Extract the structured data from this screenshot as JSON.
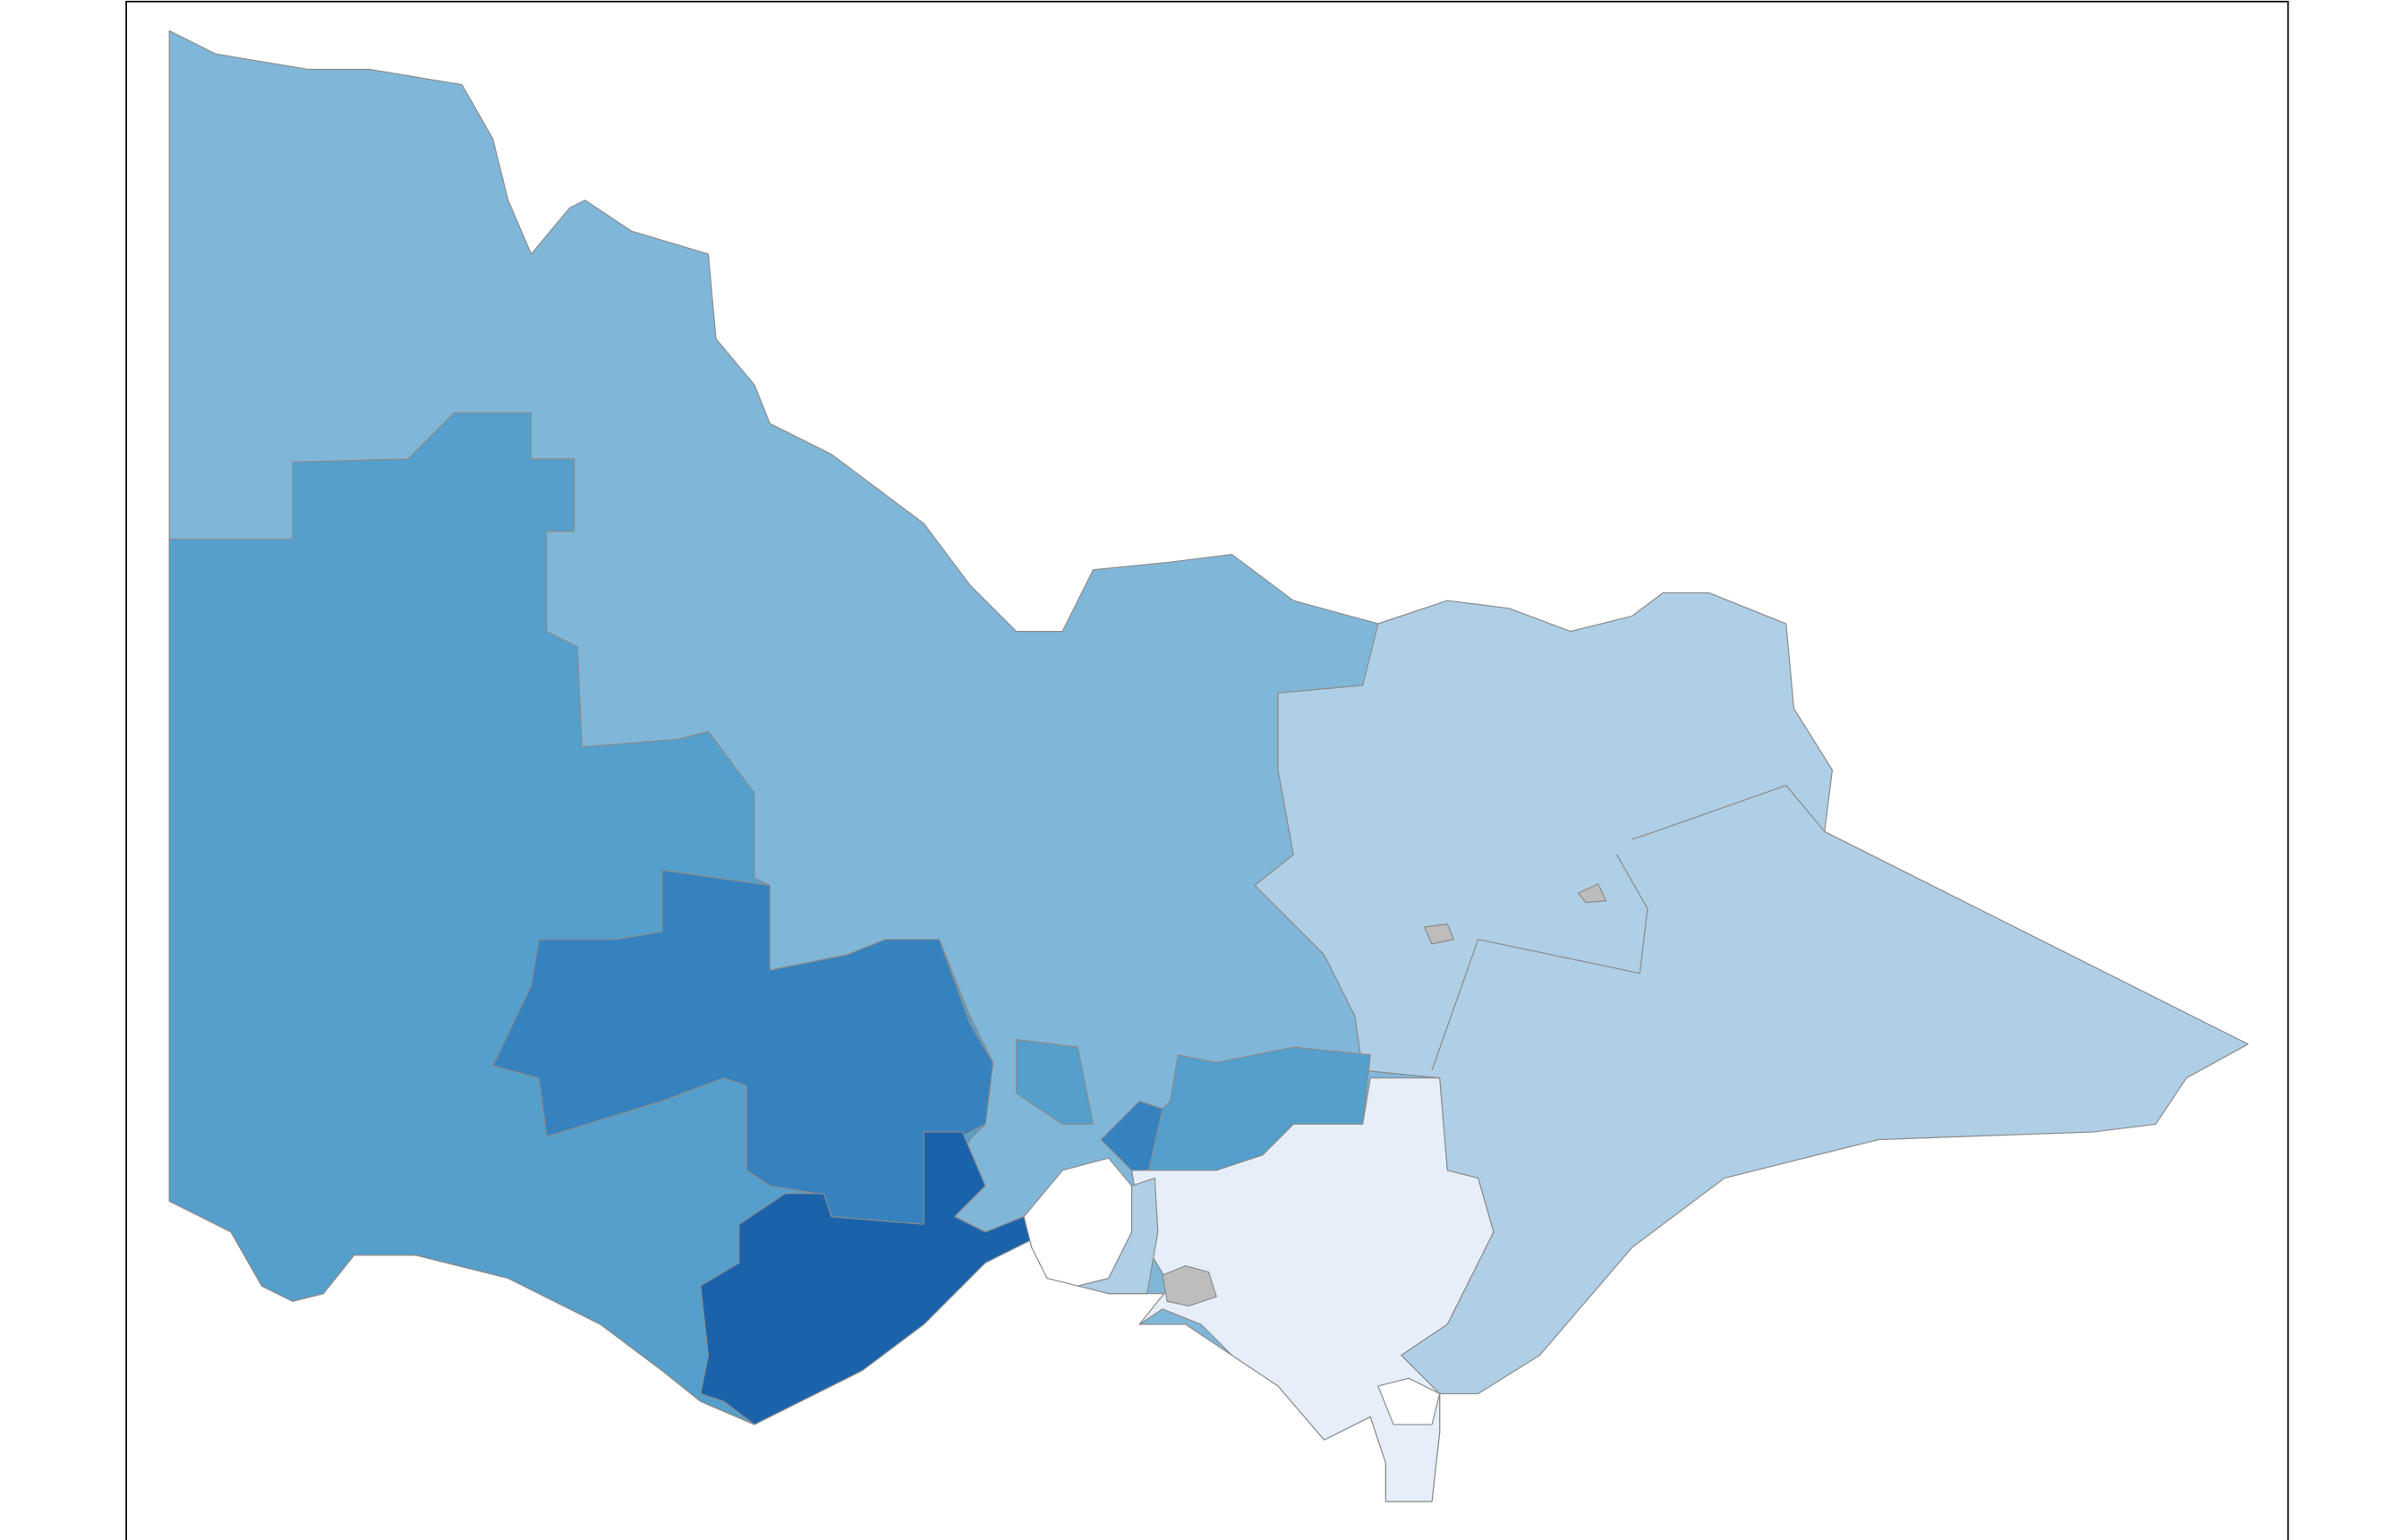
{
  "map": {
    "type": "choropleth",
    "frame_color": "#000000",
    "background": "#ffffff",
    "boundary_color": "#8c8c8c",
    "missing_color": "#bdbdbd",
    "palette": [
      "#e6eff9",
      "#aecfe5",
      "#80b7d9",
      "#549fcb",
      "#3582bf",
      "#1a63ab"
    ],
    "regions": {
      "north-west": "#80b7d9",
      "west": "#549fcb",
      "central": "#3582bf",
      "south-west-coast": "#1a63ab",
      "north-east-gippsland": "#aecfe5",
      "outer-east": "#549fcb",
      "north-metro": "#549fcb",
      "inner-metro": "#3582bf",
      "south-east-metro": "#e6eff9",
      "bay-west-strip": "#aecfe5",
      "missing-1": "#bdbdbd",
      "missing-2": "#bdbdbd",
      "missing-3": "#bdbdbd"
    }
  }
}
